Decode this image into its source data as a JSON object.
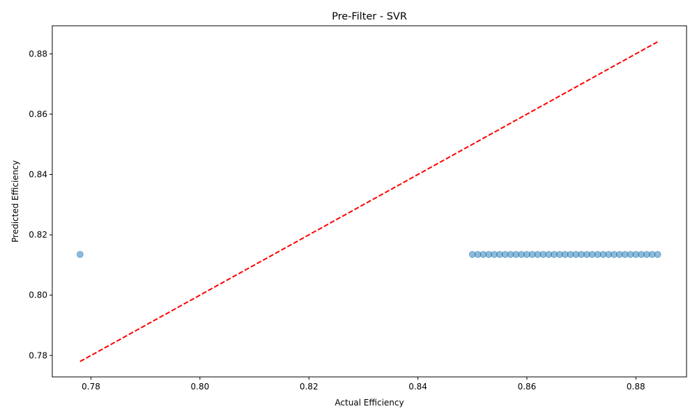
{
  "chart_data": {
    "type": "scatter",
    "title": "Pre-Filter - SVR",
    "xlabel": "Actual Efficiency",
    "ylabel": "Predicted Efficiency",
    "xlim": [
      0.7729,
      0.8893
    ],
    "ylim": [
      0.7729,
      0.8893
    ],
    "xticks": [
      0.78,
      0.8,
      0.82,
      0.84,
      0.86,
      0.88
    ],
    "yticks": [
      0.78,
      0.8,
      0.82,
      0.84,
      0.86,
      0.88
    ],
    "grid": false,
    "point_color": "#1f77b4",
    "point_alpha": 0.5,
    "reference_line": {
      "style": "dashed",
      "color": "#ff0000",
      "from": [
        0.778,
        0.778
      ],
      "to": [
        0.884,
        0.884
      ]
    },
    "points": {
      "y": 0.8135,
      "x": [
        0.778,
        0.85,
        0.851,
        0.852,
        0.853,
        0.854,
        0.855,
        0.856,
        0.857,
        0.858,
        0.859,
        0.86,
        0.861,
        0.862,
        0.863,
        0.864,
        0.865,
        0.866,
        0.867,
        0.868,
        0.869,
        0.87,
        0.871,
        0.872,
        0.873,
        0.874,
        0.875,
        0.876,
        0.877,
        0.878,
        0.879,
        0.88,
        0.881,
        0.882,
        0.883,
        0.884
      ]
    }
  }
}
